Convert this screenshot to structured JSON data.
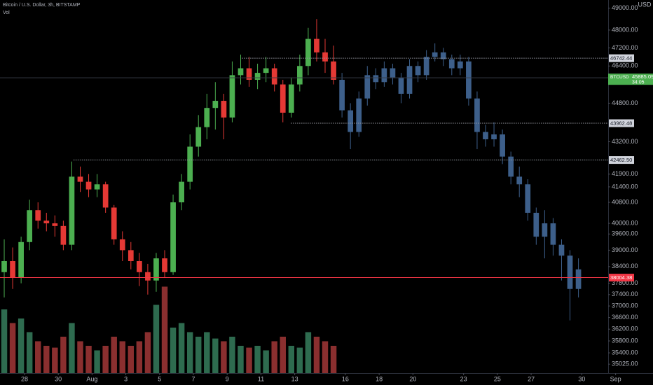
{
  "chart_data": {
    "type": "candlestick",
    "title": "Bitcoin / U.S. Dollar, 3h, BITSTAMP",
    "volume_label": "Vol",
    "currency": "USD",
    "log": true,
    "grid": false,
    "colors": {
      "up": "#4caf50",
      "down": "#e53935",
      "volume_up": "#2e6b4f",
      "volume_down": "#8a2f2f"
    },
    "xlim": [
      26.55,
      62.56
    ],
    "xticks": [
      28,
      30,
      {
        "value": 32,
        "label": "Aug"
      },
      {
        "value": 34,
        "label": "3"
      },
      {
        "value": 36,
        "label": "5"
      },
      {
        "value": 38,
        "label": "7"
      },
      {
        "value": 40,
        "label": "9"
      },
      {
        "value": 42,
        "label": "11"
      },
      {
        "value": 44,
        "label": "13"
      },
      {
        "value": 47,
        "label": "16"
      },
      {
        "value": 49,
        "label": "18"
      },
      {
        "value": 51,
        "label": "20"
      },
      {
        "value": 54,
        "label": "23"
      },
      {
        "value": 56,
        "label": "25"
      },
      {
        "value": 58,
        "label": "27"
      },
      {
        "value": 61,
        "label": "30"
      },
      {
        "value": 63,
        "label": "Sep"
      }
    ],
    "ylim": [
      34730,
      49380
    ],
    "yticks": [
      {
        "value": 49000,
        "label": "49000.00"
      },
      {
        "value": 48000,
        "label": "48000.00"
      },
      {
        "value": 47200,
        "label": "47200.00"
      },
      {
        "value": 46400,
        "label": "46400.00"
      },
      {
        "value": 44800,
        "label": "44800.00"
      },
      {
        "value": 43200,
        "label": "43200.00"
      },
      {
        "value": 41900,
        "label": "41900.00"
      },
      {
        "value": 41400,
        "label": "41400.00"
      },
      {
        "value": 40800,
        "label": "40800.00"
      },
      {
        "value": 40000,
        "label": "40000.00"
      },
      {
        "value": 39600,
        "label": "39600.00"
      },
      {
        "value": 39000,
        "label": "39000.00"
      },
      {
        "value": 38400,
        "label": "38400.00"
      },
      {
        "value": 37800,
        "label": "37800.00"
      },
      {
        "value": 37400,
        "label": "37400.00"
      },
      {
        "value": 37000,
        "label": "37000.00"
      },
      {
        "value": 36600,
        "label": "36600.00"
      },
      {
        "value": 36200,
        "label": "36200.00"
      },
      {
        "value": 35800,
        "label": "35800.00"
      },
      {
        "value": 35400,
        "label": "35400.00"
      },
      {
        "value": 35025,
        "label": "35025.00"
      }
    ],
    "x": [
      26.8,
      27.3,
      27.8,
      28.3,
      28.8,
      29.3,
      29.8,
      30.3,
      30.8,
      31.3,
      31.8,
      32.3,
      32.8,
      33.3,
      33.8,
      34.3,
      34.8,
      35.3,
      35.8,
      36.3,
      36.8,
      37.3,
      37.8,
      38.3,
      38.8,
      39.3,
      39.8,
      40.3,
      40.8,
      41.3,
      41.8,
      42.3,
      42.8,
      43.3,
      43.8,
      44.3,
      44.8,
      45.3,
      45.8,
      46.3
    ],
    "open": [
      38200,
      38600,
      38000,
      39300,
      40500,
      40100,
      40000,
      39900,
      39200,
      41800,
      41600,
      41300,
      41500,
      40600,
      39400,
      39000,
      38600,
      38200,
      37900,
      38700,
      38200,
      40800,
      41600,
      43000,
      43800,
      44600,
      44900,
      44200,
      46000,
      46300,
      45800,
      46100,
      46300,
      45600,
      44400,
      45600,
      46400,
      47600,
      47000,
      46600
    ],
    "high": [
      39400,
      39100,
      39500,
      40900,
      40800,
      40400,
      40300,
      40100,
      42400,
      42200,
      41900,
      41900,
      41600,
      40700,
      39700,
      39300,
      38900,
      38500,
      38900,
      39000,
      41100,
      41900,
      43500,
      44300,
      45200,
      45700,
      45200,
      46600,
      46900,
      46800,
      46500,
      46800,
      46500,
      45800,
      45900,
      46900,
      48100,
      48500,
      47600,
      47300
    ],
    "low": [
      37300,
      37600,
      37800,
      39000,
      39800,
      39700,
      39500,
      39000,
      39000,
      41200,
      41000,
      41000,
      40400,
      39200,
      38600,
      38300,
      37700,
      37400,
      37500,
      38000,
      38100,
      40500,
      41300,
      42600,
      43300,
      43700,
      43300,
      44000,
      45600,
      45500,
      45400,
      45700,
      45300,
      44000,
      44200,
      45300,
      46000,
      46600,
      46100,
      45600
    ],
    "close": [
      38600,
      38000,
      39300,
      40500,
      40100,
      40000,
      39900,
      39200,
      41800,
      41600,
      41300,
      41500,
      40600,
      39400,
      39000,
      38600,
      38200,
      37900,
      38700,
      38200,
      40800,
      41600,
      43000,
      43800,
      44600,
      44900,
      44200,
      46000,
      46300,
      45800,
      46100,
      46300,
      45600,
      44400,
      45600,
      46400,
      47600,
      47000,
      46600,
      45800
    ],
    "volume": [
      70,
      55,
      60,
      45,
      35,
      30,
      28,
      40,
      55,
      35,
      30,
      25,
      30,
      40,
      35,
      30,
      35,
      45,
      75,
      95,
      50,
      55,
      45,
      40,
      45,
      38,
      35,
      40,
      30,
      28,
      30,
      25,
      35,
      40,
      30,
      28,
      45,
      40,
      35,
      30
    ],
    "vlim": [
      0,
      100
    ],
    "forecast": {
      "color": "#3d5f8a",
      "x": [
        46.8,
        47.3,
        47.8,
        48.3,
        48.8,
        49.3,
        49.8,
        50.3,
        50.8,
        51.3,
        51.8,
        52.3,
        52.8,
        53.3,
        53.8,
        54.3,
        54.8,
        55.3,
        55.8,
        56.3,
        56.8,
        57.3,
        57.8,
        58.3,
        58.8,
        59.3,
        59.8,
        60.3,
        60.8
      ],
      "open": [
        45800,
        44500,
        43600,
        45000,
        46000,
        45700,
        46300,
        45900,
        45200,
        46400,
        46000,
        46800,
        47000,
        46700,
        46300,
        46600,
        45000,
        43600,
        43300,
        43500,
        42600,
        41800,
        41500,
        40400,
        39500,
        40000,
        39200,
        38800,
        37600
      ],
      "high": [
        46100,
        44800,
        45300,
        46400,
        46300,
        46600,
        46500,
        46100,
        46700,
        46600,
        47100,
        47400,
        47200,
        46900,
        46900,
        46800,
        45300,
        43900,
        44000,
        43700,
        42800,
        42200,
        41700,
        40600,
        40500,
        40200,
        39400,
        39000,
        38700
      ],
      "low": [
        44200,
        42900,
        43400,
        44700,
        45400,
        45500,
        45600,
        44800,
        45000,
        45700,
        45800,
        46600,
        46400,
        46000,
        46000,
        44700,
        42900,
        43000,
        43000,
        42300,
        41500,
        41000,
        40100,
        39200,
        38700,
        38800,
        37900,
        36500,
        37300
      ],
      "close": [
        44500,
        43600,
        45000,
        46000,
        45700,
        46300,
        45900,
        45200,
        46400,
        46000,
        46800,
        47000,
        46700,
        46300,
        46600,
        45000,
        43600,
        43300,
        43500,
        42600,
        41800,
        41500,
        40400,
        39500,
        40000,
        39200,
        38800,
        37600,
        38300
      ]
    },
    "levels": [
      {
        "value": 46742.44,
        "label": "46742.44",
        "from": 40.87,
        "color": "#9598a1"
      },
      {
        "value": 43962.48,
        "label": "43962.48",
        "from": 43.77,
        "color": "#9598a1"
      },
      {
        "value": 42462.5,
        "label": "42462.50",
        "from": 30.9,
        "color": "#9598a1"
      },
      {
        "value": 38004.38,
        "label": "38004.38",
        "from": 26.55,
        "color": "#f23645",
        "solid": true
      }
    ],
    "last_price": {
      "symbol": "BTCUSD",
      "value": 45885.09,
      "label": "45885.09",
      "countdown": "34:05",
      "color": "#4caf50"
    }
  }
}
